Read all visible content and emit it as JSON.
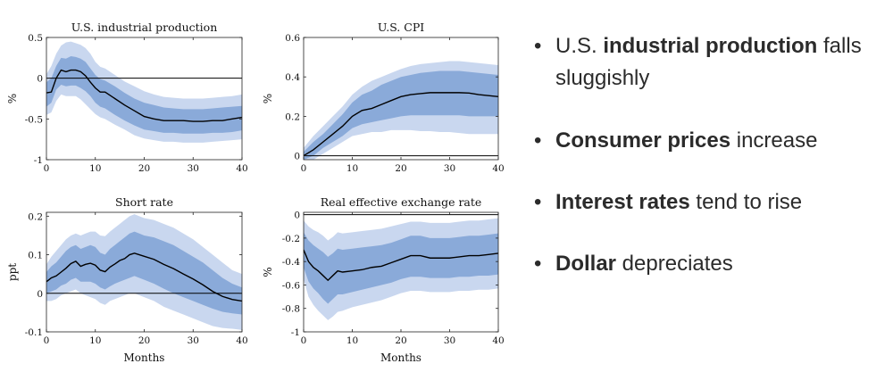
{
  "chart_data": [
    {
      "type": "line",
      "title": "U.S. industrial production",
      "xlabel": "",
      "ylabel": "%",
      "xlim": [
        0,
        40
      ],
      "ylim": [
        -1,
        0.5
      ],
      "xticks": [
        0,
        10,
        20,
        30,
        40
      ],
      "yticks": [
        0.5,
        0,
        -0.5,
        -1
      ],
      "ytick_labels": [
        "0.5",
        "0",
        "-0.5",
        "-1"
      ],
      "x": [
        0,
        1,
        2,
        3,
        4,
        5,
        6,
        7,
        8,
        9,
        10,
        11,
        12,
        14,
        16,
        18,
        20,
        22,
        24,
        26,
        28,
        30,
        32,
        34,
        36,
        38,
        40
      ],
      "median": [
        -0.18,
        -0.17,
        0.0,
        0.1,
        0.08,
        0.1,
        0.1,
        0.08,
        0.03,
        -0.05,
        -0.12,
        -0.17,
        -0.17,
        -0.25,
        -0.33,
        -0.4,
        -0.47,
        -0.5,
        -0.52,
        -0.52,
        -0.52,
        -0.53,
        -0.53,
        -0.52,
        -0.52,
        -0.5,
        -0.48
      ],
      "inner_lo": [
        -0.35,
        -0.3,
        -0.14,
        -0.08,
        -0.1,
        -0.09,
        -0.09,
        -0.12,
        -0.16,
        -0.22,
        -0.3,
        -0.35,
        -0.37,
        -0.45,
        -0.52,
        -0.58,
        -0.63,
        -0.65,
        -0.67,
        -0.67,
        -0.68,
        -0.68,
        -0.68,
        -0.67,
        -0.67,
        -0.66,
        -0.64
      ],
      "inner_hi": [
        -0.05,
        0.0,
        0.15,
        0.25,
        0.24,
        0.27,
        0.26,
        0.24,
        0.2,
        0.12,
        0.04,
        -0.01,
        -0.03,
        -0.1,
        -0.18,
        -0.25,
        -0.3,
        -0.33,
        -0.36,
        -0.37,
        -0.38,
        -0.38,
        -0.38,
        -0.37,
        -0.36,
        -0.35,
        -0.34
      ],
      "outer_lo": [
        -0.45,
        -0.42,
        -0.28,
        -0.2,
        -0.22,
        -0.22,
        -0.22,
        -0.26,
        -0.32,
        -0.38,
        -0.44,
        -0.48,
        -0.5,
        -0.57,
        -0.63,
        -0.7,
        -0.74,
        -0.76,
        -0.78,
        -0.78,
        -0.79,
        -0.79,
        -0.79,
        -0.78,
        -0.77,
        -0.76,
        -0.75
      ],
      "outer_hi": [
        0.05,
        0.15,
        0.3,
        0.4,
        0.44,
        0.45,
        0.43,
        0.41,
        0.37,
        0.3,
        0.2,
        0.14,
        0.12,
        0.04,
        -0.04,
        -0.1,
        -0.16,
        -0.2,
        -0.23,
        -0.24,
        -0.25,
        -0.25,
        -0.25,
        -0.24,
        -0.23,
        -0.22,
        -0.2
      ]
    },
    {
      "type": "line",
      "title": "U.S. CPI",
      "xlabel": "",
      "ylabel": "%",
      "xlim": [
        0,
        40
      ],
      "ylim": [
        -0.02,
        0.6
      ],
      "xticks": [
        0,
        10,
        20,
        30,
        40
      ],
      "yticks": [
        0.6,
        0.4,
        0.2,
        0
      ],
      "ytick_labels": [
        "0.6",
        "0.4",
        "0.2",
        "0"
      ],
      "x": [
        0,
        2,
        4,
        6,
        8,
        10,
        12,
        14,
        16,
        18,
        20,
        22,
        24,
        26,
        28,
        30,
        32,
        34,
        36,
        38,
        40
      ],
      "median": [
        0.0,
        0.03,
        0.07,
        0.11,
        0.15,
        0.2,
        0.23,
        0.24,
        0.26,
        0.28,
        0.3,
        0.31,
        0.315,
        0.32,
        0.32,
        0.32,
        0.32,
        0.318,
        0.31,
        0.305,
        0.3
      ],
      "inner_lo": [
        -0.02,
        0.0,
        0.04,
        0.07,
        0.1,
        0.14,
        0.16,
        0.17,
        0.18,
        0.19,
        0.2,
        0.205,
        0.205,
        0.205,
        0.205,
        0.205,
        0.205,
        0.2,
        0.2,
        0.2,
        0.2
      ],
      "inner_hi": [
        0.02,
        0.07,
        0.11,
        0.16,
        0.21,
        0.27,
        0.31,
        0.33,
        0.36,
        0.38,
        0.4,
        0.41,
        0.42,
        0.425,
        0.43,
        0.43,
        0.43,
        0.425,
        0.42,
        0.415,
        0.41
      ],
      "outer_lo": [
        -0.04,
        -0.02,
        0.01,
        0.04,
        0.07,
        0.1,
        0.11,
        0.12,
        0.12,
        0.13,
        0.13,
        0.13,
        0.125,
        0.125,
        0.12,
        0.12,
        0.115,
        0.11,
        0.11,
        0.11,
        0.11
      ],
      "outer_hi": [
        0.04,
        0.1,
        0.15,
        0.2,
        0.25,
        0.31,
        0.35,
        0.38,
        0.4,
        0.42,
        0.44,
        0.455,
        0.465,
        0.47,
        0.475,
        0.48,
        0.48,
        0.475,
        0.47,
        0.465,
        0.46
      ]
    },
    {
      "type": "line",
      "title": "Short rate",
      "xlabel": "Months",
      "ylabel": "ppt",
      "xlim": [
        0,
        40
      ],
      "ylim": [
        -0.1,
        0.21
      ],
      "xticks": [
        0,
        10,
        20,
        30,
        40
      ],
      "yticks": [
        0.2,
        0.1,
        0,
        -0.1
      ],
      "ytick_labels": [
        "0.2",
        "0.1",
        "0",
        "-0.1"
      ],
      "x": [
        0,
        1,
        2,
        3,
        4,
        5,
        6,
        7,
        8,
        9,
        10,
        11,
        12,
        13,
        14,
        15,
        16,
        17,
        18,
        19,
        20,
        22,
        24,
        26,
        28,
        30,
        32,
        34,
        36,
        38,
        40
      ],
      "median": [
        0.03,
        0.04,
        0.045,
        0.055,
        0.065,
        0.077,
        0.083,
        0.07,
        0.075,
        0.078,
        0.073,
        0.06,
        0.056,
        0.068,
        0.076,
        0.085,
        0.09,
        0.1,
        0.104,
        0.1,
        0.096,
        0.088,
        0.075,
        0.064,
        0.05,
        0.037,
        0.022,
        0.005,
        -0.008,
        -0.016,
        -0.02
      ],
      "inner_lo": [
        0.0,
        0.005,
        0.01,
        0.02,
        0.025,
        0.035,
        0.04,
        0.03,
        0.03,
        0.03,
        0.025,
        0.015,
        0.01,
        0.018,
        0.025,
        0.03,
        0.035,
        0.04,
        0.045,
        0.04,
        0.035,
        0.025,
        0.012,
        0.0,
        -0.01,
        -0.02,
        -0.03,
        -0.04,
        -0.048,
        -0.052,
        -0.055
      ],
      "inner_hi": [
        0.055,
        0.07,
        0.08,
        0.095,
        0.11,
        0.12,
        0.125,
        0.115,
        0.12,
        0.125,
        0.12,
        0.105,
        0.1,
        0.115,
        0.125,
        0.135,
        0.145,
        0.155,
        0.16,
        0.155,
        0.15,
        0.145,
        0.135,
        0.125,
        0.11,
        0.095,
        0.08,
        0.06,
        0.04,
        0.025,
        0.015
      ],
      "outer_lo": [
        -0.02,
        -0.02,
        -0.015,
        -0.005,
        0.0,
        0.005,
        0.01,
        0.0,
        -0.005,
        -0.01,
        -0.015,
        -0.025,
        -0.03,
        -0.02,
        -0.015,
        -0.01,
        -0.005,
        0.0,
        0.0,
        -0.005,
        -0.01,
        -0.02,
        -0.035,
        -0.045,
        -0.055,
        -0.065,
        -0.075,
        -0.085,
        -0.09,
        -0.092,
        -0.095
      ],
      "outer_hi": [
        0.075,
        0.095,
        0.11,
        0.125,
        0.14,
        0.15,
        0.155,
        0.15,
        0.155,
        0.16,
        0.16,
        0.15,
        0.148,
        0.16,
        0.17,
        0.18,
        0.19,
        0.2,
        0.205,
        0.2,
        0.195,
        0.19,
        0.18,
        0.17,
        0.155,
        0.14,
        0.12,
        0.1,
        0.08,
        0.06,
        0.05
      ]
    },
    {
      "type": "line",
      "title": "Real effective exchange rate",
      "xlabel": "Months",
      "ylabel": "%",
      "xlim": [
        0,
        40
      ],
      "ylim": [
        -1,
        0.02
      ],
      "xticks": [
        0,
        10,
        20,
        30,
        40
      ],
      "yticks": [
        0,
        -0.2,
        -0.4,
        -0.6,
        -0.8,
        -1
      ],
      "ytick_labels": [
        "0",
        "-0.2",
        "-0.4",
        "-0.6",
        "-0.8",
        "-1"
      ],
      "x": [
        0,
        1,
        2,
        3,
        4,
        5,
        6,
        7,
        8,
        10,
        12,
        14,
        16,
        18,
        20,
        22,
        24,
        26,
        28,
        30,
        32,
        34,
        36,
        38,
        40
      ],
      "median": [
        -0.3,
        -0.4,
        -0.45,
        -0.48,
        -0.52,
        -0.56,
        -0.52,
        -0.48,
        -0.49,
        -0.48,
        -0.47,
        -0.45,
        -0.44,
        -0.41,
        -0.38,
        -0.35,
        -0.35,
        -0.37,
        -0.37,
        -0.37,
        -0.36,
        -0.35,
        -0.35,
        -0.34,
        -0.33
      ],
      "inner_lo": [
        -0.45,
        -0.57,
        -0.63,
        -0.67,
        -0.72,
        -0.76,
        -0.72,
        -0.68,
        -0.68,
        -0.66,
        -0.64,
        -0.62,
        -0.6,
        -0.58,
        -0.55,
        -0.53,
        -0.53,
        -0.54,
        -0.54,
        -0.54,
        -0.53,
        -0.53,
        -0.52,
        -0.52,
        -0.51
      ],
      "inner_hi": [
        -0.15,
        -0.22,
        -0.26,
        -0.29,
        -0.32,
        -0.36,
        -0.33,
        -0.29,
        -0.3,
        -0.29,
        -0.28,
        -0.27,
        -0.26,
        -0.24,
        -0.21,
        -0.18,
        -0.18,
        -0.2,
        -0.2,
        -0.2,
        -0.19,
        -0.18,
        -0.18,
        -0.17,
        -0.16
      ],
      "outer_lo": [
        -0.55,
        -0.7,
        -0.77,
        -0.82,
        -0.86,
        -0.9,
        -0.87,
        -0.83,
        -0.82,
        -0.79,
        -0.77,
        -0.75,
        -0.73,
        -0.7,
        -0.67,
        -0.65,
        -0.65,
        -0.66,
        -0.66,
        -0.66,
        -0.65,
        -0.65,
        -0.64,
        -0.64,
        -0.63
      ],
      "outer_hi": [
        -0.05,
        -0.1,
        -0.13,
        -0.15,
        -0.18,
        -0.22,
        -0.19,
        -0.15,
        -0.16,
        -0.15,
        -0.14,
        -0.13,
        -0.12,
        -0.1,
        -0.08,
        -0.06,
        -0.06,
        -0.07,
        -0.07,
        -0.07,
        -0.06,
        -0.05,
        -0.05,
        -0.04,
        -0.03
      ]
    }
  ],
  "colors": {
    "outer_band": "#c9d7ef",
    "inner_band": "#8aaad9",
    "median_line": "#000000",
    "text": "#2b2b2b"
  },
  "bullets": [
    {
      "bold": "",
      "pre": "U.S. ",
      "strong": "industrial production",
      "post": " falls sluggishly"
    },
    {
      "pre": "",
      "strong": "Consumer prices",
      "post": " increase"
    },
    {
      "pre": "",
      "strong": "Interest rates",
      "post": " tend to rise"
    },
    {
      "pre": "",
      "strong": "Dollar",
      "post": " depreciates"
    }
  ]
}
